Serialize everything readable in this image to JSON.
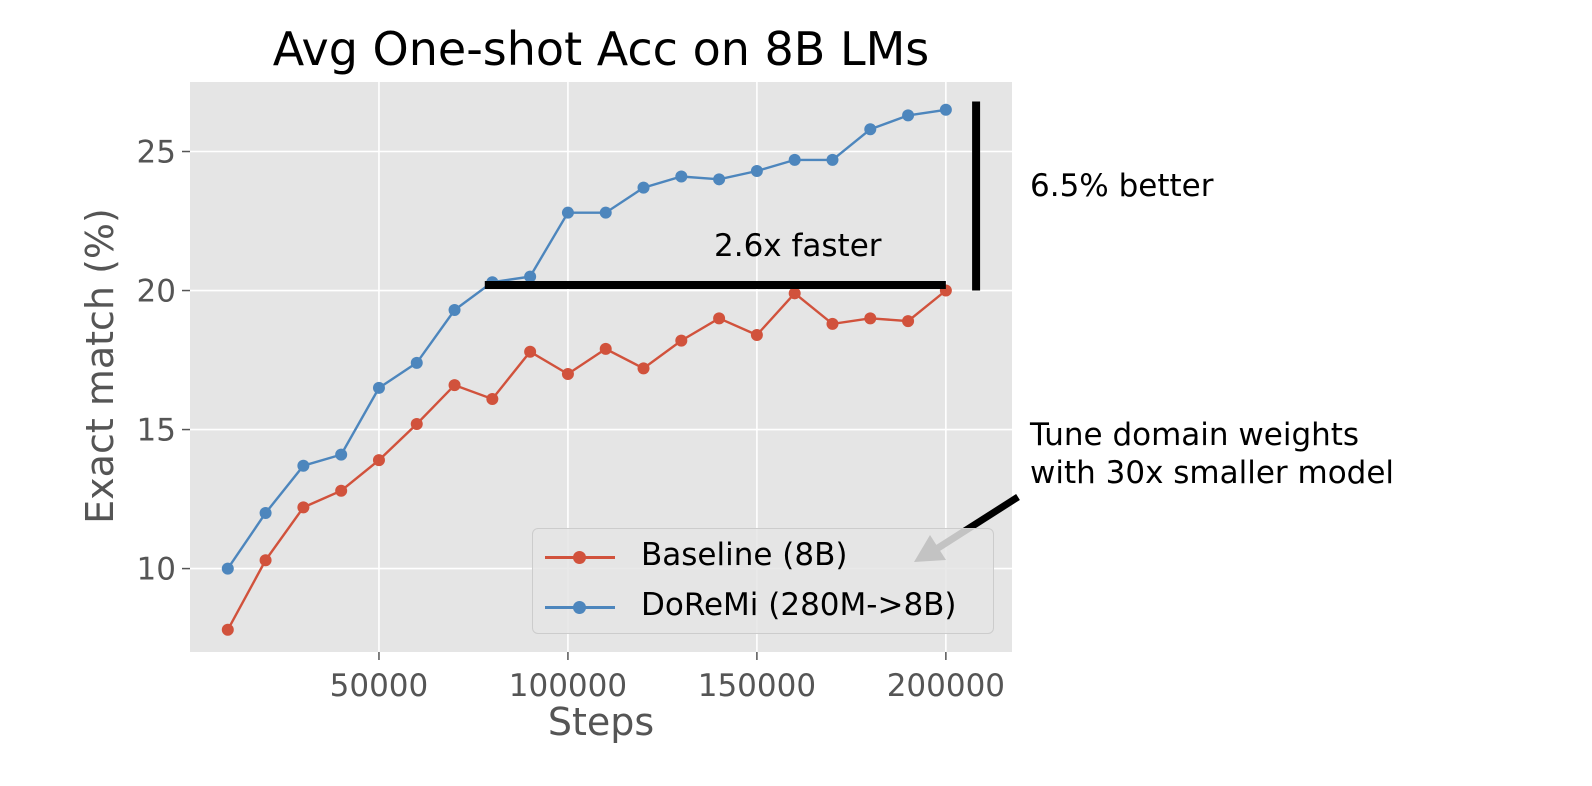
{
  "chart_data": {
    "type": "line",
    "title": "Avg One-shot Acc on 8B LMs",
    "xlabel": "Steps",
    "ylabel": "Exact match (%)",
    "xlim": [
      0,
      217500
    ],
    "ylim": [
      7.0,
      27.5
    ],
    "xticks": [
      50000,
      100000,
      150000,
      200000
    ],
    "yticks": [
      10,
      15,
      20,
      25
    ],
    "grid": true,
    "x": [
      10000,
      20000,
      30000,
      40000,
      50000,
      60000,
      70000,
      80000,
      90000,
      100000,
      110000,
      120000,
      130000,
      140000,
      150000,
      160000,
      170000,
      180000,
      190000,
      200000
    ],
    "series": [
      {
        "name": "Baseline (8B)",
        "color": "#d1523c",
        "values": [
          7.8,
          10.3,
          12.2,
          12.8,
          13.9,
          15.2,
          16.6,
          16.1,
          17.8,
          17.0,
          17.9,
          17.2,
          18.2,
          19.0,
          18.4,
          19.9,
          18.8,
          19.0,
          18.9,
          20.0
        ]
      },
      {
        "name": "DoReMi (280M->8B)",
        "color": "#4d86bd",
        "values": [
          10.0,
          12.0,
          13.7,
          14.1,
          16.5,
          17.4,
          19.3,
          20.3,
          20.5,
          22.8,
          22.8,
          23.7,
          24.1,
          24.0,
          24.3,
          24.7,
          24.7,
          25.8,
          26.3,
          26.5
        ]
      }
    ],
    "legend_position": "lower-right",
    "annotations": {
      "faster_label": "2.6x faster",
      "better_label": "6.5% better",
      "tune_line1": "Tune domain weights",
      "tune_line2": "with 30x smaller model"
    },
    "reference_lines": {
      "horizontal": {
        "y": 20.2,
        "x_from": 78000,
        "x_to": 200000
      },
      "vertical": {
        "x": 208000,
        "y_from": 20.0,
        "y_to": 26.8
      }
    }
  }
}
